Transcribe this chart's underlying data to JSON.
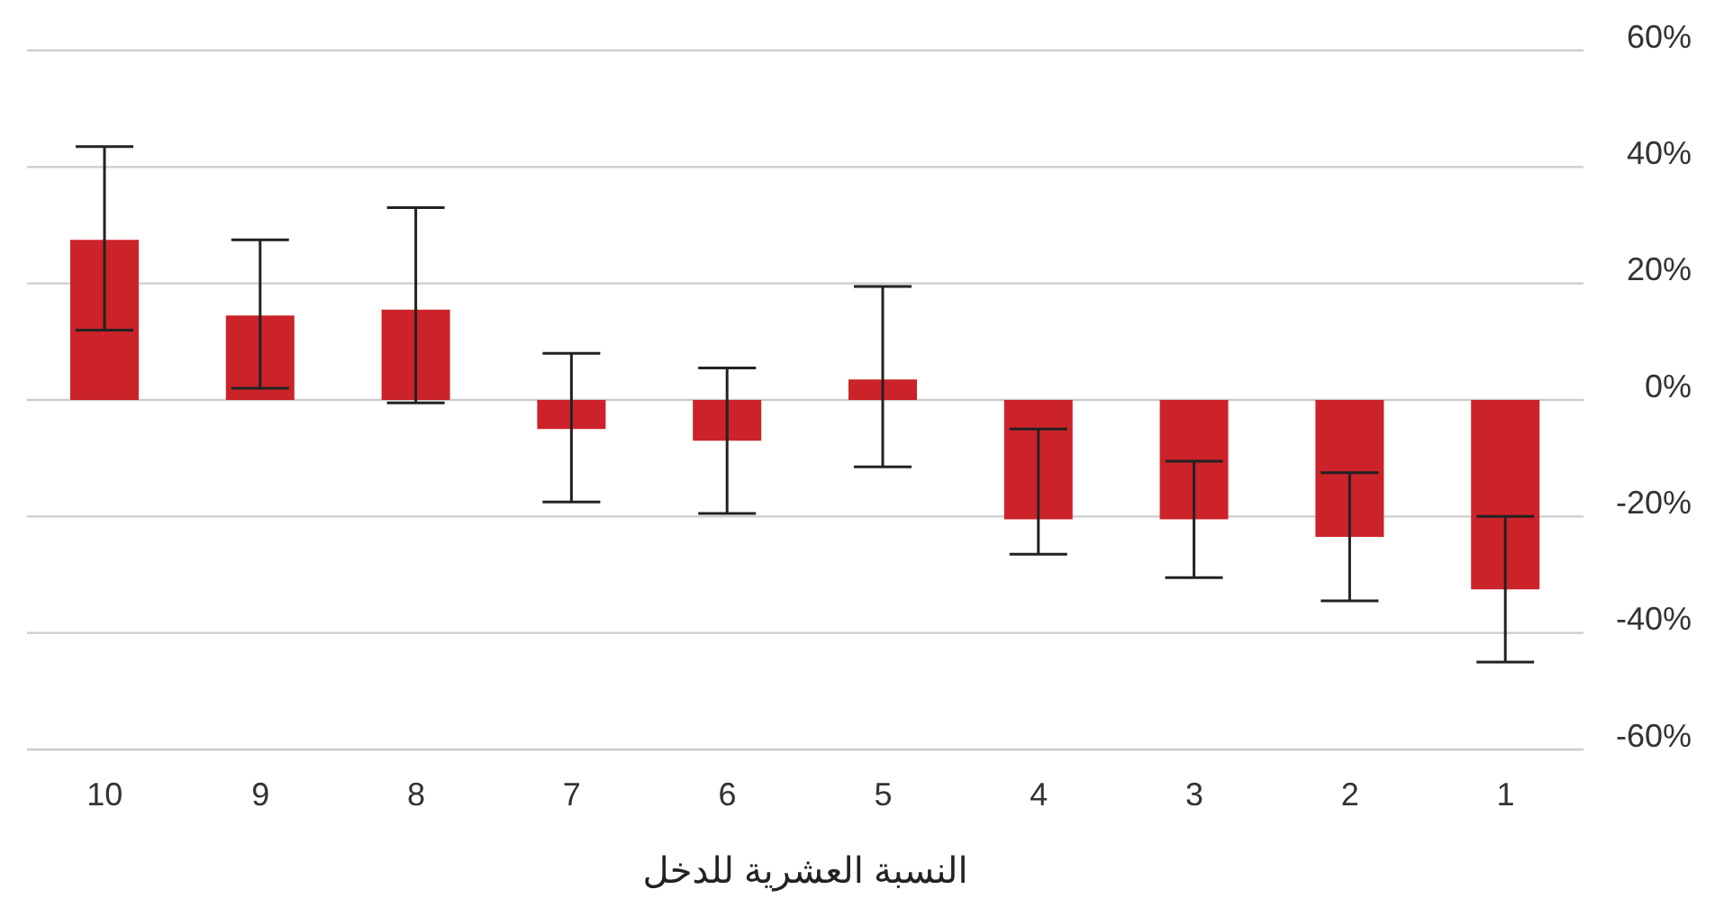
{
  "chart_data": {
    "type": "bar",
    "xlabel": "النسبة العشرية للدخل",
    "categories": [
      "10",
      "9",
      "8",
      "7",
      "6",
      "5",
      "4",
      "3",
      "2",
      "1"
    ],
    "values": [
      27.5,
      14.5,
      15.5,
      -5,
      -7,
      3.5,
      -20.5,
      -20.5,
      -23.5,
      -32.5
    ],
    "errors": [
      [
        12,
        43.5
      ],
      [
        2,
        27.5
      ],
      [
        -0.5,
        33
      ],
      [
        -17.5,
        8
      ],
      [
        -19.5,
        5.5
      ],
      [
        -11.5,
        19.5
      ],
      [
        -26.5,
        -5
      ],
      [
        -30.5,
        -10.5
      ],
      [
        -34.5,
        -12.5
      ],
      [
        -45,
        -20
      ]
    ],
    "color": "#cc2229",
    "ylim": [
      -60,
      60
    ],
    "yticks": [
      {
        "value": -60,
        "label": "-60%"
      },
      {
        "value": -40,
        "label": "-40%"
      },
      {
        "value": -20,
        "label": "-20%"
      },
      {
        "value": 0,
        "label": "0%"
      },
      {
        "value": 20,
        "label": "20%"
      },
      {
        "value": 40,
        "label": "40%"
      },
      {
        "value": 60,
        "label": "60%"
      }
    ],
    "grid": "y",
    "legend": false
  }
}
